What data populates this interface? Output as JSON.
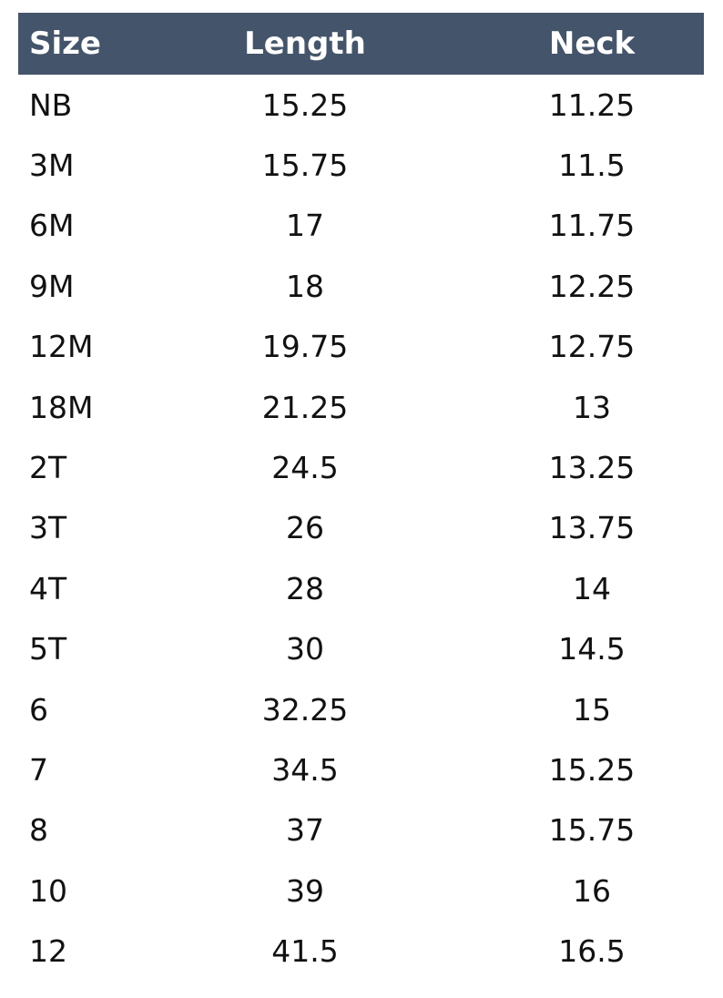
{
  "headers": [
    "Size",
    "Length",
    "Neck"
  ],
  "header_color": "#44546a",
  "rows": [
    [
      "NB",
      "15.25",
      "11.25"
    ],
    [
      "3M",
      "15.75",
      "11.5"
    ],
    [
      "6M",
      "17",
      "11.75"
    ],
    [
      "9M",
      "18",
      "12.25"
    ],
    [
      "12M",
      "19.75",
      "12.75"
    ],
    [
      "18M",
      "21.25",
      "13"
    ],
    [
      "2T",
      "24.5",
      "13.25"
    ],
    [
      "3T",
      "26",
      "13.75"
    ],
    [
      "4T",
      "28",
      "14"
    ],
    [
      "5T",
      "30",
      "14.5"
    ],
    [
      "6",
      "32.25",
      "15"
    ],
    [
      "7",
      "34.5",
      "15.25"
    ],
    [
      "8",
      "37",
      "15.75"
    ],
    [
      "10",
      "39",
      "16"
    ],
    [
      "12",
      "41.5",
      "16.5"
    ]
  ]
}
